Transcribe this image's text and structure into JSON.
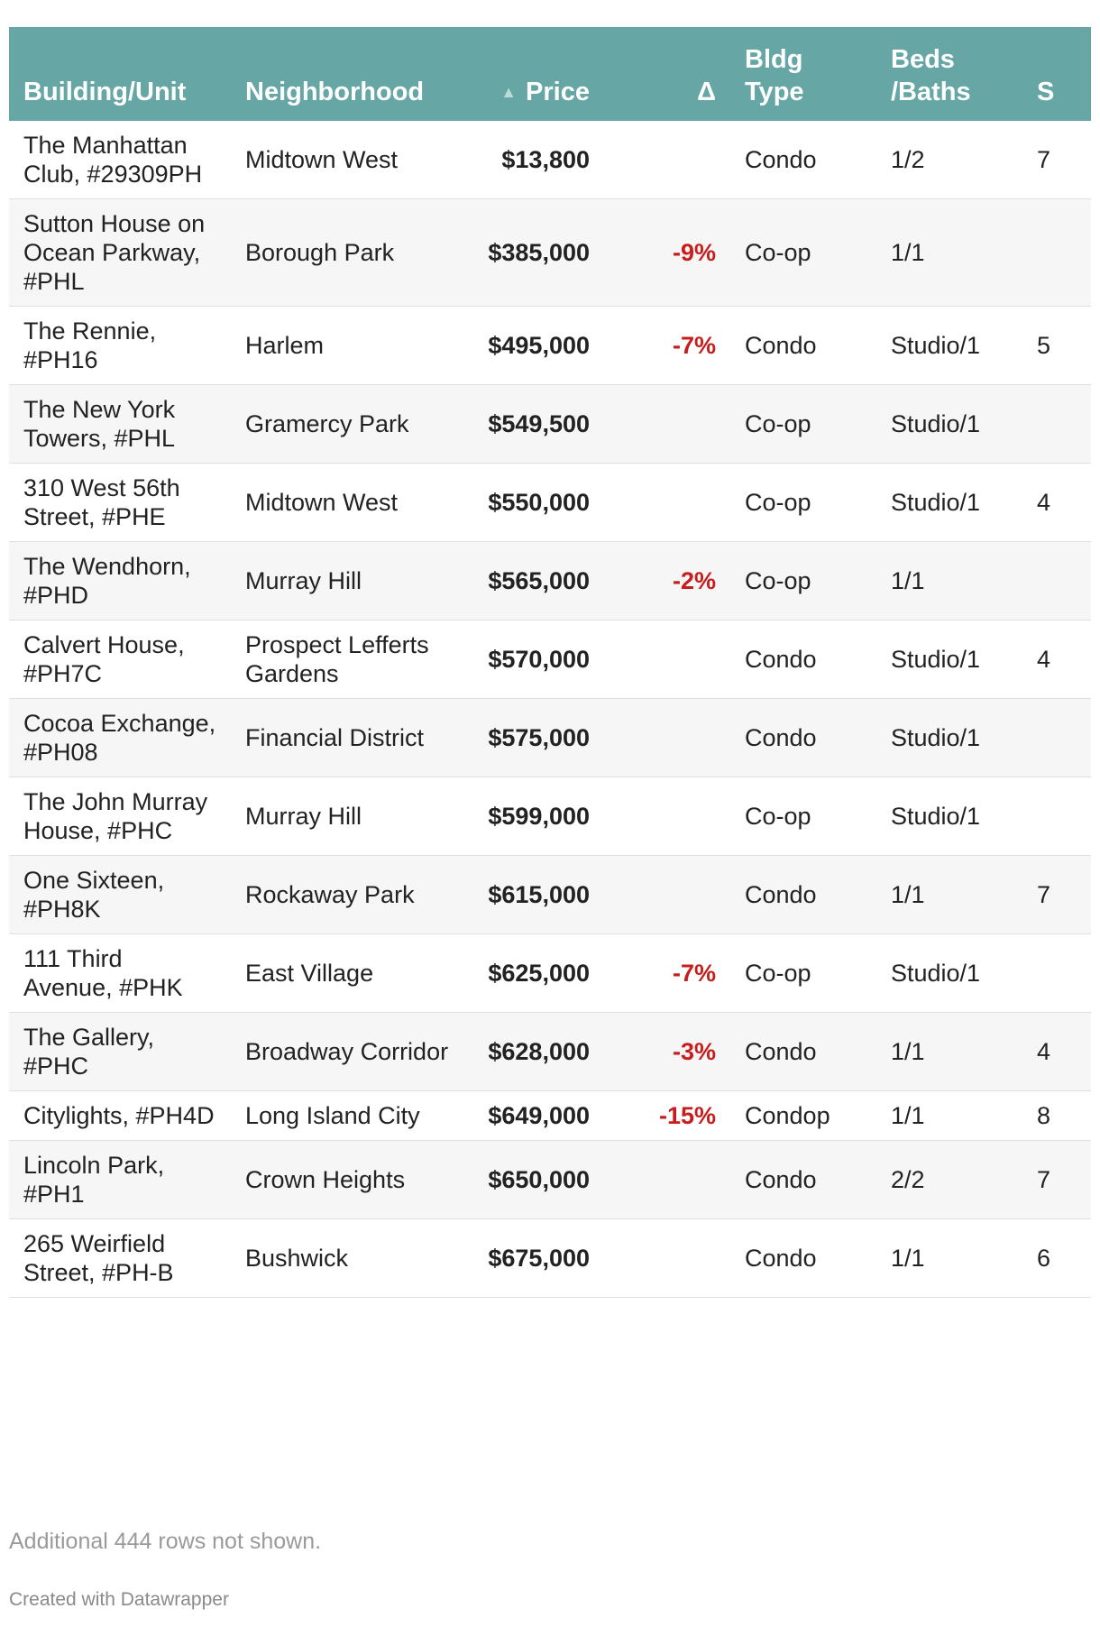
{
  "table": {
    "headers": {
      "building": "Building/Unit",
      "neighborhood": "Neighborhood",
      "price": "Price",
      "price_sort_icon": "sort-ascending-icon",
      "delta": "Δ",
      "type": "Bldg Type",
      "beds": "Beds /Baths",
      "sqft": "S"
    },
    "rows": [
      {
        "building": "The Manhattan Club, #29309PH",
        "neighborhood": "Midtown West",
        "price": "$13,800",
        "delta": "",
        "type": "Condo",
        "beds": "1/2",
        "sqft": "7"
      },
      {
        "building": "Sutton House on Ocean Parkway, #PHL",
        "neighborhood": "Borough Park",
        "price": "$385,000",
        "delta": "-9%",
        "type": "Co-op",
        "beds": "1/1",
        "sqft": ""
      },
      {
        "building": "The Rennie, #PH16",
        "neighborhood": "Harlem",
        "price": "$495,000",
        "delta": "-7%",
        "type": "Condo",
        "beds": "Studio/1",
        "sqft": "5"
      },
      {
        "building": "The New York Towers, #PHL",
        "neighborhood": "Gramercy Park",
        "price": "$549,500",
        "delta": "",
        "type": "Co-op",
        "beds": "Studio/1",
        "sqft": ""
      },
      {
        "building": "310 West 56th Street, #PHE",
        "neighborhood": "Midtown West",
        "price": "$550,000",
        "delta": "",
        "type": "Co-op",
        "beds": "Studio/1",
        "sqft": "4"
      },
      {
        "building": "The Wendhorn, #PHD",
        "neighborhood": "Murray Hill",
        "price": "$565,000",
        "delta": "-2%",
        "type": "Co-op",
        "beds": "1/1",
        "sqft": ""
      },
      {
        "building": "Calvert House, #PH7C",
        "neighborhood": "Prospect Lefferts Gardens",
        "price": "$570,000",
        "delta": "",
        "type": "Condo",
        "beds": "Studio/1",
        "sqft": "4"
      },
      {
        "building": "Cocoa Exchange, #PH08",
        "neighborhood": "Financial District",
        "price": "$575,000",
        "delta": "",
        "type": "Condo",
        "beds": "Studio/1",
        "sqft": ""
      },
      {
        "building": "The John Murray House, #PHC",
        "neighborhood": "Murray Hill",
        "price": "$599,000",
        "delta": "",
        "type": "Co-op",
        "beds": "Studio/1",
        "sqft": ""
      },
      {
        "building": "One Sixteen, #PH8K",
        "neighborhood": "Rockaway Park",
        "price": "$615,000",
        "delta": "",
        "type": "Condo",
        "beds": "1/1",
        "sqft": "7"
      },
      {
        "building": "111 Third Avenue, #PHK",
        "neighborhood": "East Village",
        "price": "$625,000",
        "delta": "-7%",
        "type": "Co-op",
        "beds": "Studio/1",
        "sqft": ""
      },
      {
        "building": "The Gallery, #PHC",
        "neighborhood": "Broadway Corridor",
        "price": "$628,000",
        "delta": "-3%",
        "type": "Condo",
        "beds": "1/1",
        "sqft": "4"
      },
      {
        "building": "Citylights, #PH4D",
        "neighborhood": "Long Island City",
        "price": "$649,000",
        "delta": "-15%",
        "type": "Condop",
        "beds": "1/1",
        "sqft": "8"
      },
      {
        "building": "Lincoln Park, #PH1",
        "neighborhood": "Crown Heights",
        "price": "$650,000",
        "delta": "",
        "type": "Condo",
        "beds": "2/2",
        "sqft": "7"
      },
      {
        "building": "265 Weirfield Street, #PH-B",
        "neighborhood": "Bushwick",
        "price": "$675,000",
        "delta": "",
        "type": "Condo",
        "beds": "1/1",
        "sqft": "6"
      }
    ]
  },
  "notes": "Additional 444 rows not shown.",
  "credit": "Created with Datawrapper",
  "colors": {
    "header_bg": "#66a7a6",
    "negative_delta": "#c71e1d"
  }
}
